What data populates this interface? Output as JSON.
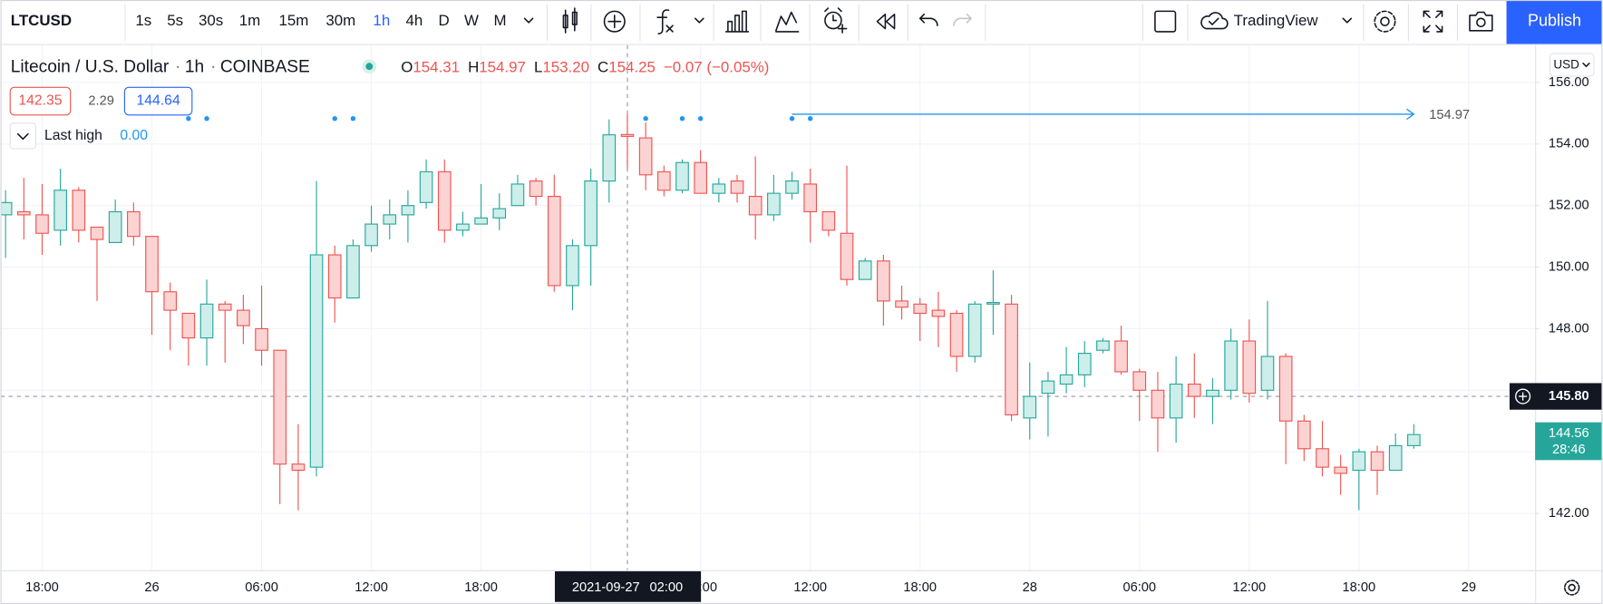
{
  "toolbar": {
    "symbol": "LTCUSD",
    "intervals": [
      "1s",
      "5s",
      "30s",
      "1m",
      "15m",
      "30m",
      "1h",
      "4h",
      "D",
      "W",
      "M"
    ],
    "layout_name": "TradingView",
    "publish": "Publish"
  },
  "legend": {
    "name": "Litecoin / U.S. Dollar",
    "interval": "1h",
    "exchange": "COINBASE",
    "o_label": "O",
    "open": "154.31",
    "h_label": "H",
    "high": "154.97",
    "l_label": "L",
    "low": "153.20",
    "c_label": "C",
    "close": "154.25",
    "change": "−0.07 (−0.05%)"
  },
  "indicator": {
    "values": [
      "142.35",
      "2.29",
      "144.64"
    ],
    "last_high_label": "Last high",
    "last_high": "0.00"
  },
  "currency": "USD",
  "chart_data": {
    "type": "candlestick",
    "up_color": "#26a69a",
    "down_color": "#ef5350",
    "grid": true,
    "x": [
      "2021-09-25 16:00",
      "2021-09-25 17:00",
      "2021-09-25 18:00",
      "2021-09-25 19:00",
      "2021-09-25 20:00",
      "2021-09-25 21:00",
      "2021-09-25 22:00",
      "2021-09-25 23:00",
      "2021-09-26 00:00",
      "2021-09-26 01:00",
      "2021-09-26 02:00",
      "2021-09-26 03:00",
      "2021-09-26 04:00",
      "2021-09-26 05:00",
      "2021-09-26 06:00",
      "2021-09-26 07:00",
      "2021-09-26 08:00",
      "2021-09-26 09:00",
      "2021-09-26 10:00",
      "2021-09-26 11:00",
      "2021-09-26 12:00",
      "2021-09-26 13:00",
      "2021-09-26 14:00",
      "2021-09-26 15:00",
      "2021-09-26 16:00",
      "2021-09-26 17:00",
      "2021-09-26 18:00",
      "2021-09-26 19:00",
      "2021-09-26 20:00",
      "2021-09-26 21:00",
      "2021-09-26 22:00",
      "2021-09-26 23:00",
      "2021-09-27 00:00",
      "2021-09-27 01:00",
      "2021-09-27 02:00",
      "2021-09-27 03:00",
      "2021-09-27 04:00",
      "2021-09-27 05:00",
      "2021-09-27 06:00",
      "2021-09-27 07:00",
      "2021-09-27 08:00",
      "2021-09-27 09:00",
      "2021-09-27 10:00",
      "2021-09-27 11:00",
      "2021-09-27 12:00",
      "2021-09-27 13:00",
      "2021-09-27 14:00",
      "2021-09-27 15:00",
      "2021-09-27 16:00",
      "2021-09-27 17:00",
      "2021-09-27 18:00",
      "2021-09-27 19:00",
      "2021-09-27 20:00",
      "2021-09-27 21:00",
      "2021-09-27 22:00",
      "2021-09-27 23:00",
      "2021-09-28 00:00",
      "2021-09-28 01:00",
      "2021-09-28 02:00",
      "2021-09-28 03:00",
      "2021-09-28 04:00",
      "2021-09-28 05:00",
      "2021-09-28 06:00",
      "2021-09-28 07:00",
      "2021-09-28 08:00",
      "2021-09-28 09:00",
      "2021-09-28 10:00",
      "2021-09-28 11:00",
      "2021-09-28 12:00",
      "2021-09-28 13:00",
      "2021-09-28 14:00",
      "2021-09-28 15:00",
      "2021-09-28 16:00",
      "2021-09-28 17:00",
      "2021-09-28 18:00",
      "2021-09-28 19:00",
      "2021-09-28 20:00",
      "2021-09-28 21:00"
    ],
    "open": [
      151.7,
      151.8,
      151.7,
      151.2,
      152.5,
      151.3,
      150.8,
      151.8,
      151.0,
      149.2,
      148.5,
      147.7,
      148.8,
      148.6,
      148.0,
      147.3,
      143.6,
      143.5,
      150.4,
      149.0,
      150.7,
      151.4,
      151.7,
      152.1,
      153.1,
      151.2,
      151.4,
      151.6,
      152.0,
      152.8,
      152.3,
      149.4,
      150.7,
      152.8,
      154.31,
      154.2,
      153.1,
      152.5,
      153.4,
      152.4,
      152.8,
      152.3,
      151.7,
      152.4,
      152.7,
      151.8,
      151.1,
      149.6,
      150.2,
      148.9,
      148.8,
      148.6,
      148.5,
      147.1,
      148.8,
      148.8,
      145.1,
      145.9,
      146.2,
      146.5,
      147.3,
      147.6,
      146.6,
      146.0,
      145.1,
      146.2,
      145.8,
      146.0,
      147.6,
      146.0,
      147.1,
      145.0,
      144.1,
      143.5,
      143.4,
      144.0,
      143.4,
      144.2
    ],
    "high": [
      152.5,
      152.9,
      152.7,
      153.2,
      152.6,
      151.3,
      152.2,
      152.1,
      151.0,
      149.5,
      148.5,
      149.6,
      148.9,
      149.1,
      149.4,
      147.3,
      144.9,
      152.8,
      150.7,
      150.9,
      152.0,
      152.2,
      152.5,
      153.5,
      153.5,
      151.8,
      152.7,
      152.4,
      153.0,
      152.9,
      153.0,
      150.9,
      153.2,
      154.8,
      154.97,
      154.7,
      153.3,
      153.5,
      153.8,
      152.9,
      153.0,
      153.6,
      153.0,
      153.1,
      153.2,
      151.8,
      153.3,
      150.3,
      150.4,
      149.4,
      149.0,
      149.2,
      148.6,
      148.9,
      149.9,
      149.1,
      146.9,
      146.6,
      147.4,
      147.6,
      147.7,
      148.1,
      146.7,
      146.6,
      147.1,
      147.2,
      146.4,
      148.0,
      148.3,
      148.9,
      147.2,
      145.2,
      145.0,
      143.9,
      144.1,
      144.2,
      144.6,
      144.9
    ],
    "low": [
      150.3,
      150.9,
      150.4,
      150.7,
      150.8,
      148.9,
      150.8,
      150.7,
      147.8,
      147.3,
      146.8,
      146.8,
      146.9,
      147.5,
      146.8,
      142.3,
      142.1,
      143.2,
      148.2,
      149.0,
      150.5,
      150.9,
      150.8,
      151.9,
      150.8,
      151.0,
      151.4,
      151.2,
      152.0,
      152.0,
      149.2,
      148.6,
      149.4,
      152.1,
      153.2,
      152.5,
      152.3,
      152.4,
      152.4,
      152.1,
      152.1,
      150.9,
      151.5,
      152.2,
      150.8,
      151.0,
      149.4,
      149.6,
      148.1,
      148.3,
      147.6,
      147.4,
      146.6,
      146.9,
      147.8,
      145.0,
      144.4,
      144.5,
      145.9,
      146.1,
      147.2,
      146.5,
      145.0,
      144.0,
      144.3,
      145.1,
      144.9,
      145.7,
      145.6,
      145.7,
      143.6,
      143.7,
      143.2,
      142.6,
      142.1,
      142.6,
      143.4,
      144.1
    ],
    "close": [
      152.1,
      151.7,
      151.1,
      152.5,
      151.2,
      150.9,
      151.8,
      151.0,
      149.2,
      148.6,
      147.7,
      148.8,
      148.6,
      148.1,
      147.3,
      143.6,
      143.4,
      150.4,
      149.0,
      150.7,
      151.4,
      151.7,
      152.0,
      153.1,
      151.2,
      151.4,
      151.6,
      151.9,
      152.7,
      152.3,
      149.4,
      150.7,
      152.8,
      154.3,
      154.25,
      153.0,
      152.5,
      153.4,
      152.4,
      152.7,
      152.4,
      151.7,
      152.4,
      152.8,
      151.8,
      151.2,
      149.6,
      150.2,
      148.9,
      148.7,
      148.5,
      148.4,
      147.1,
      148.8,
      148.85,
      145.2,
      145.8,
      146.3,
      146.5,
      147.2,
      147.6,
      146.6,
      146.0,
      145.1,
      146.2,
      145.8,
      146.0,
      147.6,
      145.9,
      147.1,
      145.0,
      144.1,
      143.5,
      143.3,
      144.0,
      143.4,
      144.2,
      144.56
    ],
    "ylim": [
      140.15,
      157.22
    ],
    "yticks": [
      {
        "value": 142,
        "label": "142.00"
      },
      {
        "value": 144,
        "label": "144.00"
      },
      {
        "value": 146,
        "label": "146.00"
      },
      {
        "value": 148,
        "label": "148.00"
      },
      {
        "value": 150,
        "label": "150.00"
      },
      {
        "value": 152,
        "label": "152.00"
      },
      {
        "value": 154,
        "label": "154.00"
      },
      {
        "value": 156,
        "label": "156.00"
      }
    ],
    "xticks": [
      {
        "value": "2021-09-25 18:00",
        "label": "18:00"
      },
      {
        "value": "2021-09-26 00:00",
        "label": "26"
      },
      {
        "value": "2021-09-26 06:00",
        "label": "06:00"
      },
      {
        "value": "2021-09-26 12:00",
        "label": "12:00"
      },
      {
        "value": "2021-09-26 18:00",
        "label": "18:00"
      },
      {
        "value": "2021-09-27 00:00",
        "label": "27"
      },
      {
        "value": "2021-09-27 06:00",
        "label": "06:00"
      },
      {
        "value": "2021-09-27 12:00",
        "label": "12:00"
      },
      {
        "value": "2021-09-27 18:00",
        "label": "18:00"
      },
      {
        "value": "2021-09-28 00:00",
        "label": "28"
      },
      {
        "value": "2021-09-28 06:00",
        "label": "06:00"
      },
      {
        "value": "2021-09-28 12:00",
        "label": "12:00"
      },
      {
        "value": "2021-09-28 18:00",
        "label": "18:00"
      },
      {
        "value": "2021-09-29 00:00",
        "label": "29"
      }
    ],
    "markers": [
      "2021-09-26 02:00",
      "2021-09-26 03:00",
      "2021-09-26 10:00",
      "2021-09-26 11:00",
      "2021-09-27 03:00",
      "2021-09-27 05:00",
      "2021-09-27 06:00",
      "2021-09-27 11:00",
      "2021-09-27 12:00"
    ],
    "ray": {
      "start": "2021-09-27 11:00",
      "price": 154.97
    },
    "crosshair": {
      "time": "2021-09-27 02:00",
      "price": {
        "value": 145.8,
        "label": "145.80"
      }
    },
    "last_price": {
      "value": 144.56,
      "countdown": "28:46"
    }
  }
}
